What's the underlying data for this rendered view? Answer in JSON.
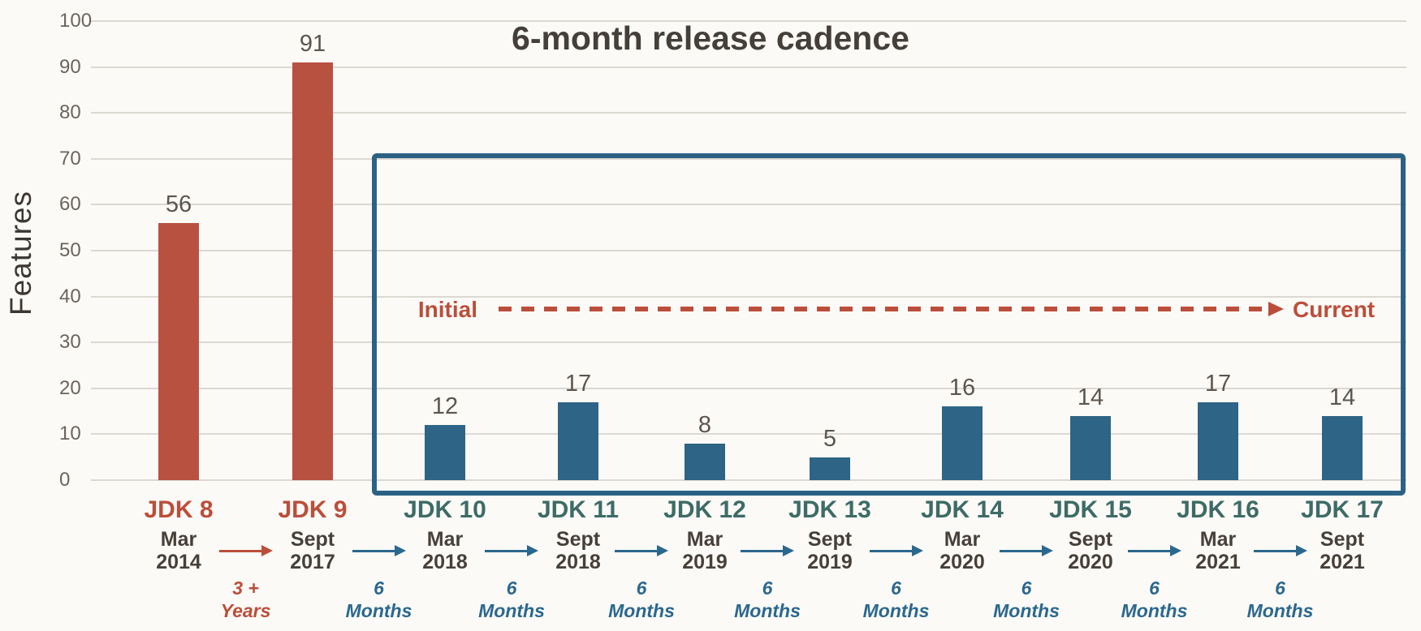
{
  "chart_data": {
    "type": "bar",
    "title": "",
    "ylabel": "Features",
    "ylim": [
      0,
      100
    ],
    "yticks": [
      0,
      10,
      20,
      30,
      40,
      50,
      60,
      70,
      80,
      90,
      100
    ],
    "grid": true,
    "legend": "none",
    "categories": [
      "JDK 8",
      "JDK 9",
      "JDK 10",
      "JDK 11",
      "JDK 12",
      "JDK 13",
      "JDK 14",
      "JDK 15",
      "JDK 16",
      "JDK 17"
    ],
    "values": [
      56,
      91,
      12,
      17,
      8,
      5,
      16,
      14,
      17,
      14
    ],
    "releases": [
      {
        "label": "JDK 8",
        "value": 56,
        "date_line1": "Mar",
        "date_line2": "2014",
        "group": "legacy"
      },
      {
        "label": "JDK 9",
        "value": 91,
        "date_line1": "Sept",
        "date_line2": "2017",
        "group": "legacy"
      },
      {
        "label": "JDK 10",
        "value": 12,
        "date_line1": "Mar",
        "date_line2": "2018",
        "group": "cadence"
      },
      {
        "label": "JDK 11",
        "value": 17,
        "date_line1": "Sept",
        "date_line2": "2018",
        "group": "cadence"
      },
      {
        "label": "JDK 12",
        "value": 8,
        "date_line1": "Mar",
        "date_line2": "2019",
        "group": "cadence"
      },
      {
        "label": "JDK 13",
        "value": 5,
        "date_line1": "Sept",
        "date_line2": "2019",
        "group": "cadence"
      },
      {
        "label": "JDK 14",
        "value": 16,
        "date_line1": "Mar",
        "date_line2": "2020",
        "group": "cadence"
      },
      {
        "label": "JDK 15",
        "value": 14,
        "date_line1": "Sept",
        "date_line2": "2020",
        "group": "cadence"
      },
      {
        "label": "JDK 16",
        "value": 17,
        "date_line1": "Mar",
        "date_line2": "2021",
        "group": "cadence"
      },
      {
        "label": "JDK 17",
        "value": 14,
        "date_line1": "Sept",
        "date_line2": "2021",
        "group": "cadence"
      }
    ],
    "gaps": [
      {
        "line1": "3 +",
        "line2": "Years",
        "style": "legacy"
      },
      {
        "line1": "6",
        "line2": "Months",
        "style": "cadence"
      },
      {
        "line1": "6",
        "line2": "Months",
        "style": "cadence"
      },
      {
        "line1": "6",
        "line2": "Months",
        "style": "cadence"
      },
      {
        "line1": "6",
        "line2": "Months",
        "style": "cadence"
      },
      {
        "line1": "6",
        "line2": "Months",
        "style": "cadence"
      },
      {
        "line1": "6",
        "line2": "Months",
        "style": "cadence"
      },
      {
        "line1": "6",
        "line2": "Months",
        "style": "cadence"
      },
      {
        "line1": "6",
        "line2": "Months",
        "style": "cadence"
      }
    ],
    "annotations": {
      "box_label": "6-month release cadence",
      "arrow_start_label": "Initial",
      "arrow_end_label": "Current"
    },
    "colors": {
      "background": "#FBFAF7",
      "legacy_bar": "#B85140",
      "legacy_text": "#BB4E3A",
      "cadence_bar": "#2E6485",
      "cadence_text": "#2B688E",
      "cadence_jdk_label": "#3E6B66",
      "box_border": "#2B6283",
      "value_label": "#5C554E",
      "date_text": "#474039",
      "axis_tick_text": "#6B645E",
      "grid_line": "#DCD8D2"
    }
  }
}
